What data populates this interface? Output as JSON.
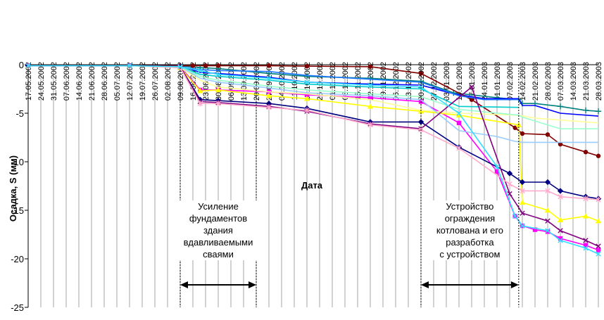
{
  "chart_data": {
    "type": "line",
    "title": "",
    "xlabel": "Дата",
    "ylabel": "Осадка, S (мм)",
    "ylim": [
      -25,
      0
    ],
    "yticks": [
      0,
      -5,
      -10,
      -15,
      -20,
      -25
    ],
    "ytick_labels": [
      "0",
      "-5",
      "-10",
      "-15",
      "-20",
      "-25"
    ],
    "grid": "vertical",
    "legend": "none",
    "x_dates": [
      "17.05.2002",
      "24.05.2002",
      "31.05.2002",
      "07.06.2002",
      "14.06.2002",
      "21.06.2002",
      "28.06.2002",
      "05.07.2002",
      "12.07.2002",
      "19.07.2002",
      "26.07.2002",
      "02.08.2002",
      "09.08.2002",
      "16.08.2002",
      "23.08.2002",
      "30.08.2002",
      "06.09.2002",
      "13.09.2002",
      "20.09.2002",
      "27.09.2002",
      "04.10.2002",
      "11.10.2002",
      "18.10.2002",
      "25.10.2002",
      "01.11.2002",
      "08.11.2002",
      "15.11.2002",
      "22.11.2002",
      "29.11.2002",
      "06.12.2002",
      "13.12.2002",
      "20.12.2002",
      "27.12.2002",
      "03.01.2003",
      "10.01.2003",
      "17.01.2003",
      "24.01.2003",
      "31.01.2003",
      "07.02.2003",
      "14.02.2003",
      "21.02.2003",
      "28.02.2003",
      "07.03.2003",
      "14.03.2003",
      "21.03.2003",
      "28.03.2003"
    ],
    "annotations": [
      {
        "lines": [
          "Усиление",
          "фундаментов",
          "здания",
          "вдавливаемыми",
          "сваями"
        ],
        "from": "09.08.2002",
        "to": "20.09.2002"
      },
      {
        "lines": [
          "Устройство",
          "ограждения",
          "котлована и его",
          "разработка",
          "с устройством"
        ],
        "from": "20.12.2002",
        "to": "12.02.2003"
      }
    ],
    "series": [
      {
        "color": "#007f7f",
        "marker": "plus",
        "points": [
          [
            "17.05.2002",
            -0.1
          ],
          [
            "12.07.2002",
            -0.1
          ],
          [
            "09.08.2002",
            -0.1
          ],
          [
            "20.08.2002",
            -0.3
          ],
          [
            "30.08.2002",
            -0.4
          ],
          [
            "27.09.2002",
            -0.9
          ],
          [
            "18.10.2002",
            -1.2
          ],
          [
            "22.11.2002",
            -1.4
          ],
          [
            "20.12.2002",
            -1.7
          ],
          [
            "07.01.2003",
            -2.9
          ],
          [
            "31.01.2003",
            -3.4
          ],
          [
            "12.02.2003",
            -3.6
          ],
          [
            "14.02.2003",
            -4.0
          ],
          [
            "21.02.2003",
            -4.0
          ],
          [
            "07.03.2003",
            -4.3
          ],
          [
            "21.03.2003",
            -4.7
          ],
          [
            "28.03.2003",
            -4.8
          ]
        ]
      },
      {
        "color": "#0000ff",
        "marker": "none",
        "points": [
          [
            "17.05.2002",
            -0.1
          ],
          [
            "12.07.2002",
            -0.1
          ],
          [
            "09.08.2002",
            -0.1
          ],
          [
            "20.08.2002",
            -0.8
          ],
          [
            "30.08.2002",
            -0.9
          ],
          [
            "27.09.2002",
            -1.3
          ],
          [
            "18.10.2002",
            -1.8
          ],
          [
            "22.11.2002",
            -2.0
          ],
          [
            "20.12.2002",
            -2.1
          ],
          [
            "07.01.2003",
            -3.0
          ],
          [
            "24.01.2003",
            -3.5
          ],
          [
            "12.02.2003",
            -3.5
          ],
          [
            "14.02.2003",
            -4.2
          ],
          [
            "21.02.2003",
            -4.2
          ],
          [
            "07.03.2003",
            -5.0
          ],
          [
            "28.03.2003",
            -5.3
          ]
        ]
      },
      {
        "color": "#800000",
        "marker": "circle",
        "points": [
          [
            "17.05.2002",
            -0.1
          ],
          [
            "12.07.2002",
            -0.1
          ],
          [
            "09.08.2002",
            -0.1
          ],
          [
            "16.08.2002",
            -0.1
          ],
          [
            "23.08.2002",
            -0.1
          ],
          [
            "30.08.2002",
            -0.1
          ],
          [
            "27.09.2002",
            -0.1
          ],
          [
            "18.10.2002",
            -0.15
          ],
          [
            "22.11.2002",
            -0.2
          ],
          [
            "20.12.2002",
            -0.9
          ],
          [
            "17.01.2003",
            -3.6
          ],
          [
            "10.02.2003",
            -6.5
          ],
          [
            "14.02.2003",
            -7.1
          ],
          [
            "28.02.2003",
            -7.2
          ],
          [
            "07.03.2003",
            -8.2
          ],
          [
            "21.03.2003",
            -9.0
          ],
          [
            "28.03.2003",
            -9.4
          ]
        ]
      },
      {
        "color": "#1f77ff",
        "marker": "none",
        "points": [
          [
            "17.05.2002",
            -0.1
          ],
          [
            "12.07.2002",
            -0.1
          ],
          [
            "09.08.2002",
            -0.2
          ],
          [
            "20.08.2002",
            -0.5
          ],
          [
            "30.08.2002",
            -0.6
          ],
          [
            "27.09.2002",
            -0.7
          ],
          [
            "18.10.2002",
            -1.1
          ],
          [
            "22.11.2002",
            -1.5
          ],
          [
            "20.12.2002",
            -1.8
          ],
          [
            "10.01.2003",
            -3.2
          ],
          [
            "24.01.2003",
            -3.6
          ],
          [
            "12.02.2003",
            -3.6
          ]
        ]
      },
      {
        "color": "#00cccc",
        "marker": "none",
        "points": [
          [
            "17.05.2002",
            -0.1
          ],
          [
            "12.07.2002",
            -0.1
          ],
          [
            "09.08.2002",
            -0.2
          ],
          [
            "20.08.2002",
            -1.0
          ],
          [
            "30.08.2002",
            -1.2
          ],
          [
            "27.09.2002",
            -1.6
          ],
          [
            "18.10.2002",
            -2.0
          ],
          [
            "22.11.2002",
            -2.3
          ],
          [
            "20.12.2002",
            -2.5
          ],
          [
            "10.01.2003",
            -4.3
          ],
          [
            "12.02.2003",
            -4.4
          ]
        ]
      },
      {
        "color": "#ff00ff",
        "marker": "square",
        "points": [
          [
            "17.05.2002",
            -0.1
          ],
          [
            "12.07.2002",
            -0.1
          ],
          [
            "09.08.2002",
            -0.2
          ],
          [
            "20.08.2002",
            -2.6
          ],
          [
            "30.08.2002",
            -2.6
          ],
          [
            "27.09.2002",
            -2.8
          ],
          [
            "18.10.2002",
            -3.1
          ],
          [
            "22.11.2002",
            -3.4
          ],
          [
            "20.12.2002",
            -3.8
          ],
          [
            "10.01.2003",
            -6.0
          ],
          [
            "31.01.2003",
            -11.0
          ],
          [
            "10.02.2003",
            -15.6
          ],
          [
            "14.02.2003",
            -16.6
          ],
          [
            "21.02.2003",
            -17.0
          ],
          [
            "28.02.2003",
            -17.2
          ],
          [
            "07.03.2003",
            -17.9
          ],
          [
            "21.03.2003",
            -18.6
          ],
          [
            "28.03.2003",
            -19.1
          ]
        ]
      },
      {
        "color": "#ffff00",
        "marker": "triangle",
        "points": [
          [
            "17.05.2002",
            -0.1
          ],
          [
            "12.07.2002",
            -0.1
          ],
          [
            "09.08.2002",
            -0.3
          ],
          [
            "20.08.2002",
            -2.7
          ],
          [
            "30.08.2002",
            -2.6
          ],
          [
            "27.09.2002",
            -3.2
          ],
          [
            "18.10.2002",
            -3.5
          ],
          [
            "22.11.2002",
            -4.3
          ],
          [
            "20.12.2002",
            -4.8
          ],
          [
            "10.01.2003",
            -5.2
          ],
          [
            "12.02.2003",
            -6.2
          ],
          [
            "14.02.2003",
            -14.2
          ],
          [
            "28.02.2003",
            -15.0
          ],
          [
            "07.03.2003",
            -16.0
          ],
          [
            "21.03.2003",
            -15.6
          ],
          [
            "28.03.2003",
            -16.1
          ]
        ]
      },
      {
        "color": "#ffff99",
        "marker": "none",
        "points": [
          [
            "17.05.2002",
            -0.1
          ],
          [
            "12.07.2002",
            -0.1
          ],
          [
            "09.08.2002",
            -0.3
          ],
          [
            "20.08.2002",
            -1.6
          ],
          [
            "30.08.2002",
            -2.3
          ],
          [
            "27.09.2002",
            -2.8
          ],
          [
            "18.10.2002",
            -3.0
          ],
          [
            "22.11.2002",
            -3.6
          ],
          [
            "20.12.2002",
            -4.7
          ],
          [
            "10.01.2003",
            -5.0
          ],
          [
            "12.02.2003",
            -5.2
          ],
          [
            "21.02.2003",
            -5.5
          ],
          [
            "28.03.2003",
            -6.0
          ]
        ]
      },
      {
        "color": "#99ffcc",
        "marker": "none",
        "points": [
          [
            "17.05.2002",
            -0.1
          ],
          [
            "12.07.2002",
            -0.1
          ],
          [
            "09.08.2002",
            -0.2
          ],
          [
            "20.08.2002",
            -1.2
          ],
          [
            "30.08.2002",
            -1.6
          ],
          [
            "27.09.2002",
            -2.2
          ],
          [
            "18.10.2002",
            -2.6
          ],
          [
            "22.11.2002",
            -3.0
          ],
          [
            "20.12.2002",
            -3.3
          ],
          [
            "10.01.2003",
            -4.6
          ],
          [
            "12.02.2003",
            -5.2
          ],
          [
            "14.02.2003",
            -5.4
          ],
          [
            "28.02.2003",
            -6.2
          ],
          [
            "07.03.2003",
            -6.6
          ],
          [
            "28.03.2003",
            -6.6
          ]
        ]
      },
      {
        "color": "#99ccff",
        "marker": "none",
        "points": [
          [
            "17.05.2002",
            -0.1
          ],
          [
            "12.07.2002",
            -0.1
          ],
          [
            "09.08.2002",
            -0.2
          ],
          [
            "20.08.2002",
            -1.4
          ],
          [
            "30.08.2002",
            -1.8
          ],
          [
            "27.09.2002",
            -2.4
          ],
          [
            "18.10.2002",
            -2.9
          ],
          [
            "22.11.2002",
            -3.2
          ],
          [
            "20.12.2002",
            -3.6
          ],
          [
            "10.01.2003",
            -6.8
          ],
          [
            "31.01.2003",
            -7.4
          ],
          [
            "10.02.2003",
            -7.9
          ],
          [
            "14.02.2003",
            -8.0
          ],
          [
            "28.03.2003",
            -8.0
          ]
        ]
      },
      {
        "color": "#000080",
        "marker": "diamond",
        "points": [
          [
            "17.05.2002",
            -0.1
          ],
          [
            "12.07.2002",
            -0.1
          ],
          [
            "09.08.2002",
            -0.2
          ],
          [
            "20.08.2002",
            -3.6
          ],
          [
            "30.08.2002",
            -3.7
          ],
          [
            "27.09.2002",
            -4.0
          ],
          [
            "18.10.2002",
            -4.5
          ],
          [
            "22.11.2002",
            -5.9
          ],
          [
            "20.12.2002",
            -5.9
          ],
          [
            "10.01.2003",
            -8.5
          ],
          [
            "07.02.2003",
            -11.2
          ],
          [
            "14.02.2003",
            -12.1
          ],
          [
            "28.02.2003",
            -12.1
          ],
          [
            "07.03.2003",
            -13.0
          ],
          [
            "21.03.2003",
            -13.6
          ],
          [
            "28.03.2003",
            -13.8
          ]
        ]
      },
      {
        "color": "#80007f",
        "marker": "cross",
        "points": [
          [
            "17.05.2002",
            -0.1
          ],
          [
            "12.07.2002",
            -0.1
          ],
          [
            "09.08.2002",
            -0.2
          ],
          [
            "20.08.2002",
            -3.8
          ],
          [
            "30.08.2002",
            -3.9
          ],
          [
            "27.09.2002",
            -4.3
          ],
          [
            "18.10.2002",
            -4.8
          ],
          [
            "22.11.2002",
            -6.1
          ],
          [
            "20.12.2002",
            -6.6
          ],
          [
            "17.01.2003",
            -2.3
          ],
          [
            "07.02.2003",
            -13.3
          ],
          [
            "14.02.2003",
            -15.3
          ],
          [
            "28.02.2003",
            -16.1
          ],
          [
            "07.03.2003",
            -17.1
          ],
          [
            "21.03.2003",
            -18.1
          ],
          [
            "28.03.2003",
            -18.7
          ]
        ]
      },
      {
        "color": "#ffaacc",
        "marker": "star",
        "points": [
          [
            "17.05.2002",
            -0.1
          ],
          [
            "12.07.2002",
            -0.1
          ],
          [
            "09.08.2002",
            -0.3
          ],
          [
            "20.08.2002",
            -4.0
          ],
          [
            "30.08.2002",
            -4.0
          ],
          [
            "27.09.2002",
            -4.4
          ],
          [
            "18.10.2002",
            -4.7
          ],
          [
            "22.11.2002",
            -6.2
          ],
          [
            "20.12.2002",
            -6.7
          ],
          [
            "10.01.2003",
            -8.6
          ],
          [
            "07.02.2003",
            -12.3
          ],
          [
            "14.02.2003",
            -13.0
          ],
          [
            "28.02.2003",
            -13.0
          ],
          [
            "07.03.2003",
            -13.6
          ],
          [
            "21.03.2003",
            -13.8
          ],
          [
            "28.03.2003",
            -13.9
          ]
        ]
      },
      {
        "color": "#33ddff",
        "marker": "x",
        "points": [
          [
            "17.05.2002",
            -0.1
          ],
          [
            "12.07.2002",
            -0.1
          ],
          [
            "09.08.2002",
            -0.2
          ],
          [
            "20.08.2002",
            -0.6
          ],
          [
            "30.08.2002",
            -1.0
          ],
          [
            "27.09.2002",
            -1.4
          ],
          [
            "18.10.2002",
            -1.8
          ],
          [
            "22.11.2002",
            -2.1
          ],
          [
            "20.12.2002",
            -2.3
          ],
          [
            "10.01.2003",
            -5.0
          ],
          [
            "31.01.2003",
            -10.5
          ],
          [
            "10.02.2003",
            -15.6
          ],
          [
            "14.02.2003",
            -16.6
          ],
          [
            "28.02.2003",
            -17.1
          ],
          [
            "07.03.2003",
            -18.1
          ],
          [
            "21.03.2003",
            -18.9
          ],
          [
            "28.03.2003",
            -19.5
          ]
        ]
      }
    ]
  }
}
